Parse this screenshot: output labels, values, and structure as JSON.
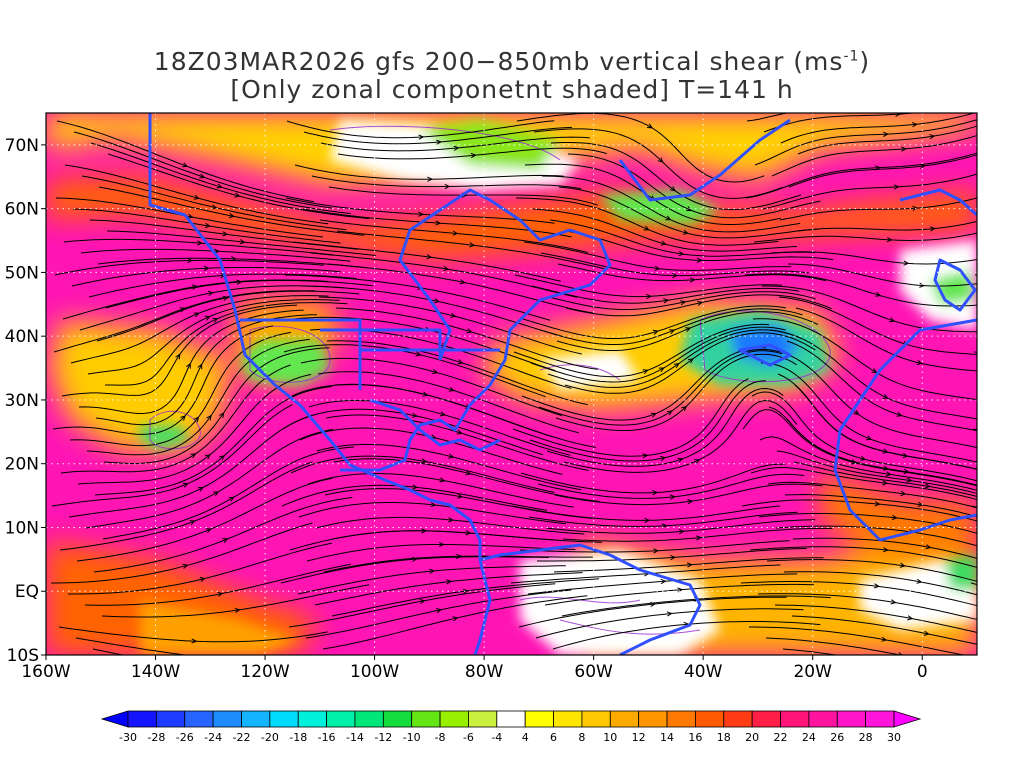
{
  "title": {
    "line1_prefix": "18Z03MAR2026 gfs 200−850mb vertical shear (ms",
    "line1_sup": "-1",
    "line1_suffix": ")",
    "line2": "[Only zonal componetnt shaded] T=141 h"
  },
  "map": {
    "lon_range": [
      -160,
      10
    ],
    "lat_range": [
      -10,
      75
    ],
    "lon_ticks": [
      {
        "value": -160,
        "label": "160W"
      },
      {
        "value": -140,
        "label": "140W"
      },
      {
        "value": -120,
        "label": "120W"
      },
      {
        "value": -100,
        "label": "100W"
      },
      {
        "value": -80,
        "label": "80W"
      },
      {
        "value": -60,
        "label": "60W"
      },
      {
        "value": -40,
        "label": "40W"
      },
      {
        "value": -20,
        "label": "20W"
      },
      {
        "value": 0,
        "label": "0"
      }
    ],
    "lat_ticks": [
      {
        "value": -10,
        "label": "10S"
      },
      {
        "value": 0,
        "label": "EQ"
      },
      {
        "value": 10,
        "label": "10N"
      },
      {
        "value": 20,
        "label": "20N"
      },
      {
        "value": 30,
        "label": "30N"
      },
      {
        "value": 40,
        "label": "40N"
      },
      {
        "value": 50,
        "label": "50N"
      },
      {
        "value": 60,
        "label": "60N"
      },
      {
        "value": 70,
        "label": "70N"
      }
    ],
    "coastline_color": "#3050ff",
    "streamline_color": "#000000",
    "contour_color": "#9b30d0",
    "gridline": "dotted"
  },
  "colorbar": {
    "labels": [
      "-30",
      "-28",
      "-26",
      "-24",
      "-22",
      "-20",
      "-18",
      "-16",
      "-14",
      "-12",
      "-10",
      "-8",
      "-6",
      "-4",
      "4",
      "6",
      "8",
      "10",
      "12",
      "14",
      "16",
      "18",
      "20",
      "22",
      "24",
      "26",
      "28",
      "30"
    ],
    "colors": [
      "#1414ff",
      "#1e3cff",
      "#2864ff",
      "#1e8cff",
      "#14b4ff",
      "#00dcff",
      "#00f0dc",
      "#00f0aa",
      "#00e678",
      "#14dc3c",
      "#64e614",
      "#96f000",
      "#c8f03c",
      "#ffffff",
      "#ffff00",
      "#ffe600",
      "#ffc800",
      "#ffaa00",
      "#ff9600",
      "#ff7800",
      "#ff5a00",
      "#ff3c14",
      "#ff1e46",
      "#ff1478",
      "#ff14a0",
      "#ff14c8",
      "#ff14dc"
    ],
    "left_end_color": "#0000ff",
    "right_end_color": "#ff00ff"
  }
}
